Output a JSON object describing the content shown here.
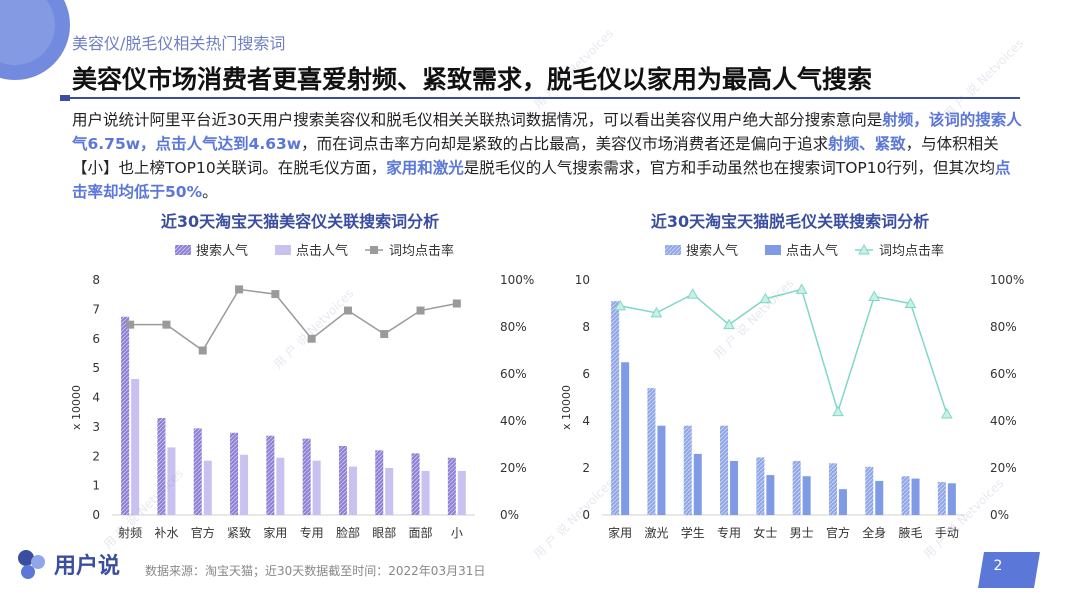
{
  "breadcrumb": "美容仪/脱毛仪相关热门搜索词",
  "headline": "美容仪市场消费者更喜爱射频、紧致需求，脱毛仪以家用为最高人气搜索",
  "intro": {
    "p1": "用户说统计阿里平台近30天用户搜索美容仪和脱毛仪相关关联热词数据情况，可以看出美容仪用户绝大部分搜索意向是",
    "h1": "射频，该词的搜索人气6.75w，点击人气达到4.63w",
    "p2": "，而在词点击率方向却是紧致的占比最高，美容仪市场消费者还是偏向于追求",
    "h2": "射频、紧致",
    "p3": "，与体积相关【小】也上榜TOP10关联词。在脱毛仪方面，",
    "h3": "家用和激光",
    "p4": "是脱毛仪的人气搜索需求，官方和手动虽然也在搜索词TOP10行列，但其次均",
    "h4": "点击率却均低于50%",
    "p5": "。"
  },
  "footer": {
    "brand": "用户说",
    "source": "数据来源：淘宝天猫；近30天数据截至时间：2022年03月31日",
    "page": "2"
  },
  "watermark": {
    "cn": "用 户 说",
    "en": "Netvoices"
  },
  "colors": {
    "accent": "#3a4ea1",
    "highlight": "#5b77d8",
    "beauty_search": "#8e7fd6",
    "beauty_click": "#c9c1f0",
    "beauty_rate": "#9a9a9a",
    "hair_search": "#8fa6e8",
    "hair_click": "#7f9be6",
    "hair_rate": "#7fd8c6"
  },
  "chart_data": [
    {
      "type": "bar",
      "title": "近30天淘宝天猫美容仪关联搜索词分析",
      "ylabel": "x 10000",
      "ylim": [
        0,
        8
      ],
      "yticks": [
        "0",
        "1",
        "2",
        "3",
        "4",
        "5",
        "6",
        "7",
        "8"
      ],
      "y2lim": [
        0,
        1
      ],
      "y2ticks": [
        "0%",
        "20%",
        "40%",
        "60%",
        "80%",
        "100%"
      ],
      "legend_position": "top",
      "categories": [
        "射频",
        "补水",
        "官方",
        "紧致",
        "家用",
        "专用",
        "脸部",
        "眼部",
        "面部",
        "小"
      ],
      "series": [
        {
          "name": "搜索人气",
          "kind": "bar",
          "values": [
            6.75,
            3.3,
            2.95,
            2.8,
            2.7,
            2.6,
            2.35,
            2.2,
            2.1,
            1.95
          ]
        },
        {
          "name": "点击人气",
          "kind": "bar",
          "values": [
            4.63,
            2.3,
            1.85,
            2.05,
            1.95,
            1.85,
            1.65,
            1.6,
            1.5,
            1.5
          ]
        },
        {
          "name": "词均点击率",
          "kind": "line",
          "axis": "right",
          "values": [
            0.81,
            0.81,
            0.7,
            0.96,
            0.94,
            0.75,
            0.87,
            0.77,
            0.87,
            0.9
          ]
        }
      ]
    },
    {
      "type": "bar",
      "title": "近30天淘宝天猫脱毛仪关联搜索词分析",
      "ylabel": "x 10000",
      "ylim": [
        0,
        10
      ],
      "yticks": [
        "0",
        "2",
        "4",
        "6",
        "8",
        "10"
      ],
      "y2lim": [
        0,
        1
      ],
      "y2ticks": [
        "0%",
        "20%",
        "40%",
        "60%",
        "80%",
        "100%"
      ],
      "legend_position": "top",
      "categories": [
        "家用",
        "激光",
        "学生",
        "专用",
        "女士",
        "男士",
        "官方",
        "全身",
        "腋毛",
        "手动"
      ],
      "series": [
        {
          "name": "搜索人气",
          "kind": "bar",
          "values": [
            9.1,
            5.4,
            3.8,
            3.8,
            2.45,
            2.3,
            2.2,
            2.05,
            1.65,
            1.4
          ]
        },
        {
          "name": "点击人气",
          "kind": "bar",
          "values": [
            6.5,
            3.8,
            2.6,
            2.3,
            1.7,
            1.65,
            1.1,
            1.45,
            1.55,
            1.35
          ]
        },
        {
          "name": "词均点击率",
          "kind": "line",
          "axis": "right",
          "values": [
            0.89,
            0.86,
            0.94,
            0.81,
            0.92,
            0.96,
            0.44,
            0.93,
            0.9,
            0.43
          ]
        }
      ]
    }
  ]
}
